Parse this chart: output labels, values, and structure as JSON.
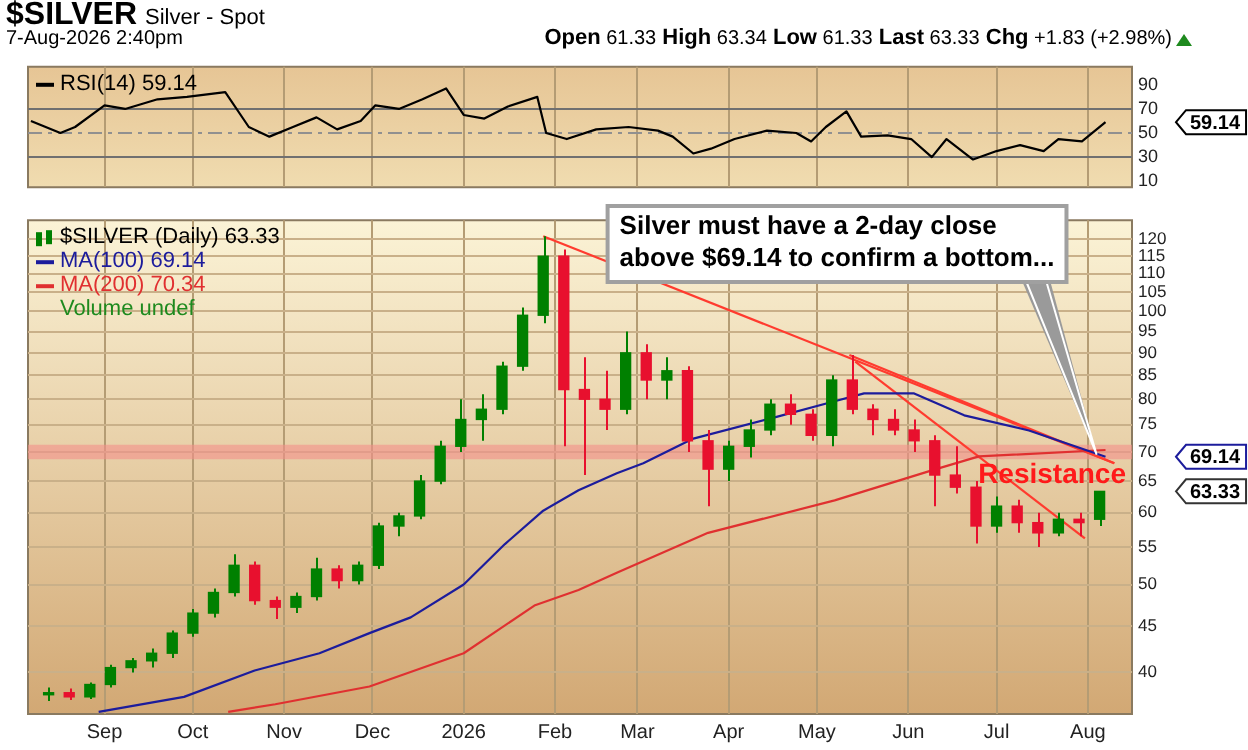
{
  "chart_data": [
    {
      "type": "line",
      "title": "$SILVER",
      "subtitle": "Silver - Spot",
      "annotations": [
        "7-Aug-2026 2:40pm",
        "Open 61.33 High 63.34 Low 61.33 Last 63.33 Chg +1.83 (+2.98%)",
        "59.14"
      ],
      "series": [
        {
          "name": "RSI(14) 59.14",
          "color": "#000000",
          "x": [
            "2025-08-07",
            "2025-08-17",
            "2025-08-22",
            "2025-09-01",
            "2025-09-08",
            "2025-09-19",
            "2025-09-29",
            "2025-10-12",
            "2025-10-20",
            "2025-10-27",
            "2025-11-04",
            "2025-11-12",
            "2025-11-19",
            "2025-11-27",
            "2025-12-02",
            "2025-12-10",
            "2025-12-18",
            "2025-12-26",
            "2026-01-01",
            "2026-01-08",
            "2026-01-16",
            "2026-01-26",
            "2026-01-29",
            "2026-02-05",
            "2026-02-15",
            "2026-02-26",
            "2026-03-08",
            "2026-03-13",
            "2026-03-20",
            "2026-03-26",
            "2026-04-03",
            "2026-04-14",
            "2026-04-24",
            "2026-04-29",
            "2026-05-04",
            "2026-05-11",
            "2026-05-16",
            "2026-05-25",
            "2026-06-02",
            "2026-06-09",
            "2026-06-14",
            "2026-06-23",
            "2026-07-01",
            "2026-07-09",
            "2026-07-17",
            "2026-07-22",
            "2026-07-30",
            "2026-08-07"
          ],
          "values": [
            60,
            50,
            55,
            73,
            70,
            78,
            80,
            84,
            55,
            47,
            55,
            63,
            53,
            60,
            73,
            70,
            78,
            87,
            65,
            62,
            72,
            80,
            50,
            45,
            53,
            55,
            52,
            47,
            33,
            37,
            45,
            52,
            50,
            43,
            55,
            68,
            47,
            48,
            45,
            30,
            45,
            28,
            35,
            40,
            35,
            45,
            43,
            59
          ]
        }
      ],
      "xlim": [
        "2025-08-06",
        "2026-08-16"
      ],
      "xticks": [
        {
          "value": "2025-09-01",
          "label": null
        },
        {
          "value": "2025-10-01",
          "label": null
        },
        {
          "value": "2025-11-01",
          "label": null
        },
        {
          "value": "2025-12-01",
          "label": null
        },
        {
          "value": "2026-01-01",
          "label": null
        },
        {
          "value": "2026-02-01",
          "label": null
        },
        {
          "value": "2026-03-01",
          "label": null
        },
        {
          "value": "2026-04-01",
          "label": null
        },
        {
          "value": "2026-05-01",
          "label": null
        },
        {
          "value": "2026-06-01",
          "label": null
        },
        {
          "value": "2026-07-01",
          "label": null
        },
        {
          "value": "2026-08-01",
          "label": null
        }
      ],
      "ylim": [
        5,
        105
      ],
      "yticks": [
        10,
        30,
        50,
        70,
        90
      ],
      "ref_lines": [
        {
          "axis": "y",
          "value": 70,
          "color": "#707070"
        },
        {
          "axis": "y",
          "value": 30,
          "color": "#707070"
        },
        {
          "axis": "y",
          "value": 50,
          "color": "#909090",
          "line_style": "dashed"
        }
      ],
      "grid": "x",
      "legend": "top left",
      "tick_labels": "y"
    },
    {
      "type": "candlestick",
      "x": [
        "2025-08-13",
        "2025-08-20",
        "2025-08-27",
        "2025-09-03",
        "2025-09-10",
        "2025-09-17",
        "2025-09-24",
        "2025-10-01",
        "2025-10-08",
        "2025-10-15",
        "2025-10-22",
        "2025-10-29",
        "2025-11-05",
        "2025-11-12",
        "2025-11-19",
        "2025-11-26",
        "2025-12-03",
        "2025-12-10",
        "2025-12-17",
        "2025-12-24",
        "2025-12-31",
        "2026-01-07",
        "2026-01-14",
        "2026-01-21",
        "2026-01-28",
        "2026-02-04",
        "2026-02-11",
        "2026-02-18",
        "2026-02-25",
        "2026-03-04",
        "2026-03-11",
        "2026-03-18",
        "2026-03-25",
        "2026-04-01",
        "2026-04-08",
        "2026-04-15",
        "2026-04-22",
        "2026-04-29",
        "2026-05-06",
        "2026-05-13",
        "2026-05-20",
        "2026-05-27",
        "2026-06-03",
        "2026-06-10",
        "2026-06-17",
        "2026-06-24",
        "2026-07-01",
        "2026-07-08",
        "2026-07-15",
        "2026-07-22",
        "2026-07-29",
        "2026-08-05"
      ],
      "series": [
        {
          "name": "$SILVER (Daily) 63.33",
          "type": "candlestick",
          "ohlc": [
            [
              37.8,
              38.5,
              37.2,
              38
            ],
            [
              38,
              38.4,
              37.3,
              37.6
            ],
            [
              37.6,
              39,
              37.4,
              38.8
            ],
            [
              38.8,
              40.8,
              38.5,
              40.5
            ],
            [
              40.5,
              41.5,
              40,
              41.2
            ],
            [
              41.2,
              42.5,
              40.5,
              42
            ],
            [
              42,
              44.5,
              41.5,
              44.2
            ],
            [
              44.2,
              47,
              43.8,
              46.5
            ],
            [
              46.5,
              49.5,
              46,
              49
            ],
            [
              49,
              54,
              48.5,
              52.5
            ],
            [
              52.5,
              53,
              47.5,
              48
            ],
            [
              48,
              48.5,
              45.8,
              47.2
            ],
            [
              47.2,
              49,
              46.5,
              48.5
            ],
            [
              48.5,
              53.5,
              48,
              52
            ],
            [
              52,
              52.5,
              49.5,
              50.5
            ],
            [
              50.5,
              53,
              50,
              52.5
            ],
            [
              52.5,
              58.5,
              52,
              58
            ],
            [
              58,
              60,
              56.5,
              59.5
            ],
            [
              59.5,
              66,
              59,
              65
            ],
            [
              65,
              72,
              64.5,
              71
            ],
            [
              71,
              80,
              70,
              76
            ],
            [
              76,
              81,
              72,
              78
            ],
            [
              78,
              88,
              77,
              87
            ],
            [
              87,
              101,
              86,
              99
            ],
            [
              99,
              121,
              97,
              115
            ],
            [
              115,
              117,
              71,
              82
            ],
            [
              82,
              89,
              66,
              80
            ],
            [
              80,
              86,
              74,
              78
            ],
            [
              78,
              95,
              77,
              90
            ],
            [
              90,
              92,
              80,
              84
            ],
            [
              84,
              89,
              80,
              86
            ],
            [
              86,
              87,
              70,
              72
            ],
            [
              72,
              74,
              61,
              67
            ],
            [
              67,
              72,
              65,
              71
            ],
            [
              71,
              76,
              69,
              74
            ],
            [
              74,
              80,
              73,
              79
            ],
            [
              79,
              81,
              75,
              77
            ],
            [
              77,
              78,
              72,
              73
            ],
            [
              73,
              85,
              71,
              84
            ],
            [
              84,
              89.5,
              77,
              78
            ],
            [
              78,
              79,
              73,
              76
            ],
            [
              76,
              78,
              73,
              74
            ],
            [
              74,
              76,
              70,
              72
            ],
            [
              72,
              73,
              61,
              66
            ],
            [
              66,
              71,
              63,
              64
            ],
            [
              64,
              65,
              55.5,
              58
            ],
            [
              58,
              62.5,
              57,
              61
            ],
            [
              61,
              62,
              57,
              58.5
            ],
            [
              58.5,
              60,
              55,
              57
            ],
            [
              57,
              60,
              56.5,
              59
            ],
            [
              59,
              60,
              56.5,
              58.5
            ],
            [
              59,
              63.34,
              58,
              63.33
            ]
          ],
          "colors": [
            "#008000",
            "#e8102e",
            "#008000",
            "#008000",
            "#008000",
            "#008000",
            "#008000",
            "#008000",
            "#008000",
            "#008000",
            "#e8102e",
            "#e8102e",
            "#008000",
            "#008000",
            "#e8102e",
            "#008000",
            "#008000",
            "#008000",
            "#008000",
            "#008000",
            "#008000",
            "#008000",
            "#008000",
            "#008000",
            "#008000",
            "#e8102e",
            "#e8102e",
            "#e8102e",
            "#008000",
            "#e8102e",
            "#008000",
            "#e8102e",
            "#e8102e",
            "#008000",
            "#008000",
            "#008000",
            "#e8102e",
            "#e8102e",
            "#008000",
            "#e8102e",
            "#e8102e",
            "#e8102e",
            "#e8102e",
            "#e8102e",
            "#e8102e",
            "#e8102e",
            "#008000",
            "#e8102e",
            "#e8102e",
            "#008000",
            "#e8102e",
            "#008000"
          ]
        },
        {
          "name": "MA(100) 69.14",
          "type": "line",
          "color": "#1c1c9c",
          "x": [
            "2025-08-30",
            "2025-09-28",
            "2025-10-22",
            "2025-11-13",
            "2025-11-30",
            "2025-12-14",
            "2026-01-01",
            "2026-01-15",
            "2026-01-28",
            "2026-02-09",
            "2026-02-22",
            "2026-03-03",
            "2026-03-20",
            "2026-04-16",
            "2026-05-07",
            "2026-05-17",
            "2026-06-03",
            "2026-06-20",
            "2026-07-12",
            "2026-08-07"
          ],
          "values": [
            36.2,
            37.6,
            40.2,
            42,
            44.2,
            46,
            50,
            55.4,
            60.3,
            63.5,
            66.3,
            68,
            72.4,
            76.3,
            79.6,
            81.2,
            81.2,
            76.8,
            73.9,
            69.14
          ]
        },
        {
          "name": "MA(200) 70.34",
          "type": "line",
          "color": "#e03030",
          "x": [
            "2025-10-13",
            "2025-10-29",
            "2025-11-30",
            "2026-01-01",
            "2026-01-25",
            "2026-02-09",
            "2026-02-22",
            "2026-03-25",
            "2026-05-07",
            "2026-06-09",
            "2026-06-25",
            "2026-08-07"
          ],
          "values": [
            36.2,
            36.9,
            38.6,
            42,
            47.4,
            49.3,
            51.5,
            57,
            61.9,
            66.8,
            69.2,
            70.34
          ]
        },
        {
          "type": "line",
          "color": "#ff3b2f",
          "x": [
            "2026-01-28",
            "2026-08-10"
          ],
          "values": [
            121,
            68
          ]
        },
        {
          "type": "line",
          "color": "#ff3b2f",
          "x": [
            "2026-05-12",
            "2026-08-10"
          ],
          "values": [
            89.5,
            68
          ]
        },
        {
          "type": "line",
          "color": "#ff3b2f",
          "x": [
            "2026-05-14",
            "2026-07-31"
          ],
          "values": [
            88,
            56.2
          ]
        }
      ],
      "annotations": [
        "Volume undef",
        {
          "text": "Silver must have a 2-day close above $69.14 to confirm a bottom...",
          "x": "2026-08-04",
          "y": 69.5
        },
        "63.33",
        "69.14"
      ],
      "bands": [
        {
          "axis": "y",
          "from": 68.7,
          "to": 71.3,
          "label": "Resistance",
          "color": "#f4908a"
        }
      ],
      "xlim": [
        "2025-08-06",
        "2026-08-16"
      ],
      "xticks": [
        {
          "value": "2025-09-01",
          "label": "Sep"
        },
        {
          "value": "2025-10-01",
          "label": "Oct"
        },
        {
          "value": "2025-11-01",
          "label": "Nov"
        },
        {
          "value": "2025-12-01",
          "label": "Dec"
        },
        {
          "value": "2026-01-01",
          "label": "2026"
        },
        {
          "value": "2026-02-01",
          "label": "Feb"
        },
        {
          "value": "2026-03-01",
          "label": "Mar"
        },
        {
          "value": "2026-04-01",
          "label": "Apr"
        },
        {
          "value": "2026-05-01",
          "label": "May"
        },
        {
          "value": "2026-06-01",
          "label": "Jun"
        },
        {
          "value": "2026-07-01",
          "label": "Jul"
        },
        {
          "value": "2026-08-01",
          "label": "Aug"
        }
      ],
      "ylim": [
        36,
        126
      ],
      "yticks": [
        40,
        45,
        50,
        55,
        60,
        65,
        70,
        75,
        80,
        85,
        90,
        95,
        100,
        105,
        110,
        115,
        120
      ],
      "log": "y",
      "grid": true,
      "legend": "top left"
    }
  ]
}
